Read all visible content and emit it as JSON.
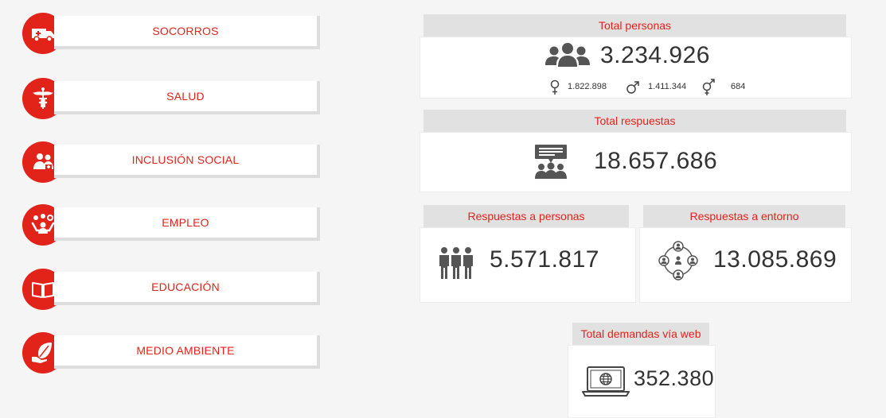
{
  "menu": {
    "items": [
      {
        "label": "SOCORROS",
        "icon": "ambulance-icon"
      },
      {
        "label": "SALUD",
        "icon": "caduceus-icon"
      },
      {
        "label": "INCLUSIÓN SOCIAL",
        "icon": "people-care-icon"
      },
      {
        "label": "EMPLEO",
        "icon": "person-ideas-icon"
      },
      {
        "label": "EDUCACIÓN",
        "icon": "open-book-icon"
      },
      {
        "label": "MEDIO AMBIENTE",
        "icon": "hand-leaf-icon"
      }
    ]
  },
  "stats": {
    "total_personas": {
      "title": "Total personas",
      "value": "3.234.926",
      "female": "1.822.898",
      "male": "1.411.344",
      "other": "684"
    },
    "total_respuestas": {
      "title": "Total respuestas",
      "value": "18.657.686"
    },
    "respuestas_personas": {
      "title": "Respuestas a personas",
      "value": "5.571.817"
    },
    "respuestas_entorno": {
      "title": "Respuestas a entorno",
      "value": "13.085.869"
    },
    "demandas_web": {
      "title": "Total demandas vía web",
      "value": "352.380"
    }
  },
  "colors": {
    "accent": "#e2231a",
    "header_bg": "#e1e1e1",
    "icon_gray": "#555555"
  }
}
